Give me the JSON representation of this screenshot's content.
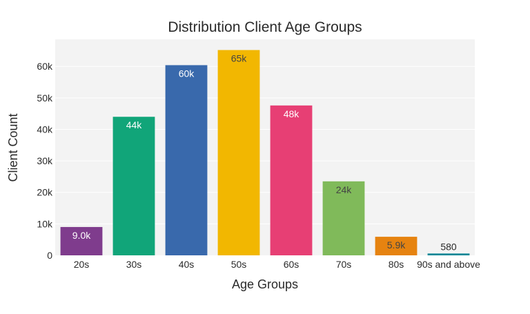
{
  "chart_data": {
    "type": "bar",
    "title": "Distribution Client Age Groups",
    "xlabel": "Age Groups",
    "ylabel": "Client Count",
    "categories": [
      "20s",
      "30s",
      "40s",
      "50s",
      "60s",
      "70s",
      "80s",
      "90s and above"
    ],
    "values": [
      9000,
      44000,
      60400,
      65200,
      47600,
      23500,
      5900,
      580
    ],
    "data_labels": [
      "9.0k",
      "44k",
      "60k",
      "65k",
      "48k",
      "24k",
      "5.9k",
      "580"
    ],
    "colors": [
      "#7f3c8d",
      "#11a579",
      "#3969ac",
      "#f2b701",
      "#e73f74",
      "#80ba5a",
      "#e68310",
      "#008695"
    ],
    "label_colors": [
      "#ffffff",
      "#ffffff",
      "#ffffff",
      "#444444",
      "#ffffff",
      "#444444",
      "#444444",
      "#444444"
    ],
    "yticks": [
      0,
      10000,
      20000,
      30000,
      40000,
      50000,
      60000
    ],
    "ytick_labels": [
      "0",
      "10k",
      "20k",
      "30k",
      "40k",
      "50k",
      "60k"
    ],
    "ylim": [
      0,
      68600
    ],
    "grid": true,
    "plot_background": "#f3f3f3"
  }
}
